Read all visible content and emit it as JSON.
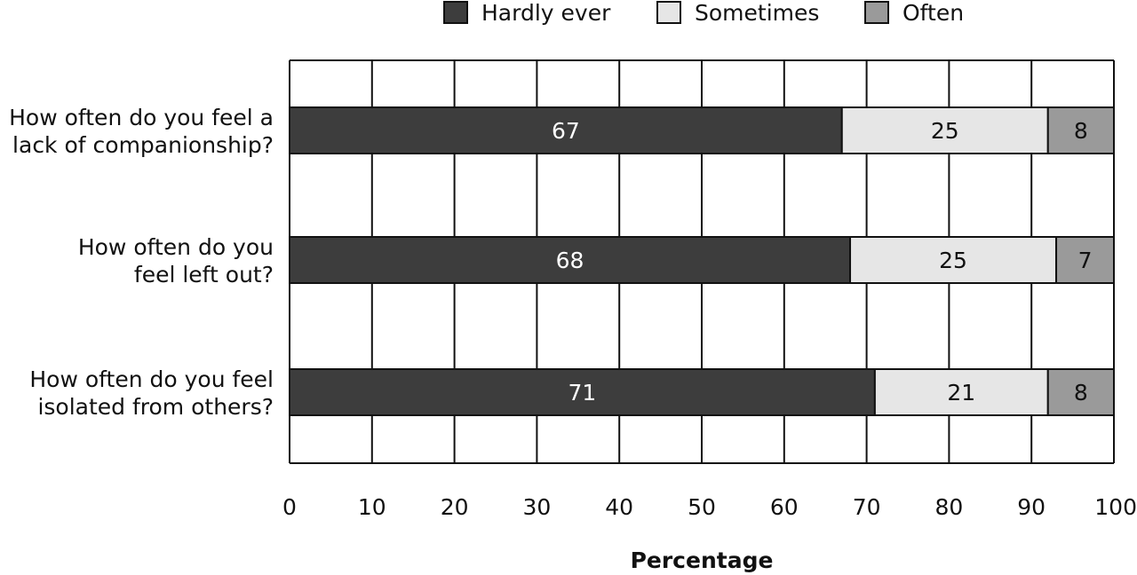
{
  "chart_data": {
    "type": "bar",
    "orientation": "horizontal",
    "stacked": true,
    "title": "",
    "xlabel": "Percentage",
    "ylabel": "",
    "xlim": [
      0,
      100
    ],
    "x_ticks": [
      0,
      10,
      20,
      30,
      40,
      50,
      60,
      70,
      80,
      90,
      100
    ],
    "grid": true,
    "legend_position": "top",
    "categories": [
      [
        "How often do you feel a",
        "lack of companionship?"
      ],
      [
        "How often do you",
        "feel left out?"
      ],
      [
        "How often do you feel",
        "isolated from others?"
      ]
    ],
    "series": [
      {
        "name": "Hardly ever",
        "color": "#3d3d3d",
        "label_color": "#ffffff",
        "values": [
          67,
          68,
          71
        ]
      },
      {
        "name": "Sometimes",
        "color": "#e6e6e6",
        "label_color": "#111111",
        "values": [
          25,
          25,
          21
        ]
      },
      {
        "name": "Often",
        "color": "#9a9a9a",
        "label_color": "#111111",
        "values": [
          8,
          7,
          8
        ]
      }
    ]
  }
}
